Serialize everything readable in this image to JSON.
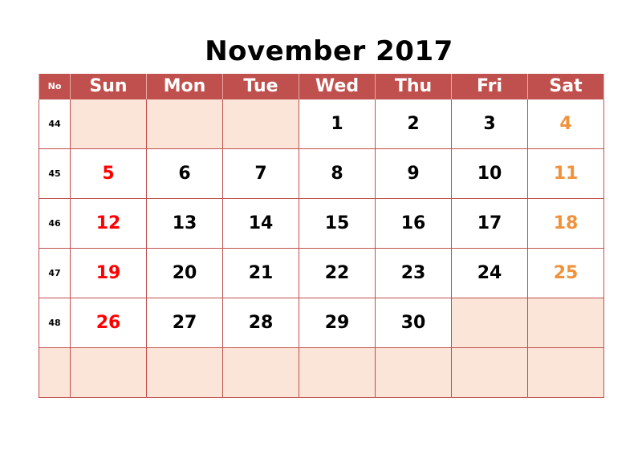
{
  "title": "November 2017",
  "headers": [
    "No",
    "Sun",
    "Mon",
    "Tue",
    "Wed",
    "Thu",
    "Fri",
    "Sat"
  ],
  "weeks": [
    {
      "no": "44",
      "days": [
        "",
        "",
        "",
        "1",
        "2",
        "3",
        "4"
      ]
    },
    {
      "no": "45",
      "days": [
        "5",
        "6",
        "7",
        "8",
        "9",
        "10",
        "11"
      ]
    },
    {
      "no": "46",
      "days": [
        "12",
        "13",
        "14",
        "15",
        "16",
        "17",
        "18"
      ]
    },
    {
      "no": "47",
      "days": [
        "19",
        "20",
        "21",
        "22",
        "23",
        "24",
        "25"
      ]
    },
    {
      "no": "48",
      "days": [
        "26",
        "27",
        "28",
        "29",
        "30",
        "",
        ""
      ]
    },
    {
      "no": "",
      "days": [
        "",
        "",
        "",
        "",
        "",
        "",
        ""
      ]
    }
  ],
  "colors": {
    "header_bg": "#c0504d",
    "grid_line": "#c0504d",
    "empty_cell": "#fbe5d9",
    "sunday": "#ff0000",
    "saturday": "#f0923b"
  }
}
